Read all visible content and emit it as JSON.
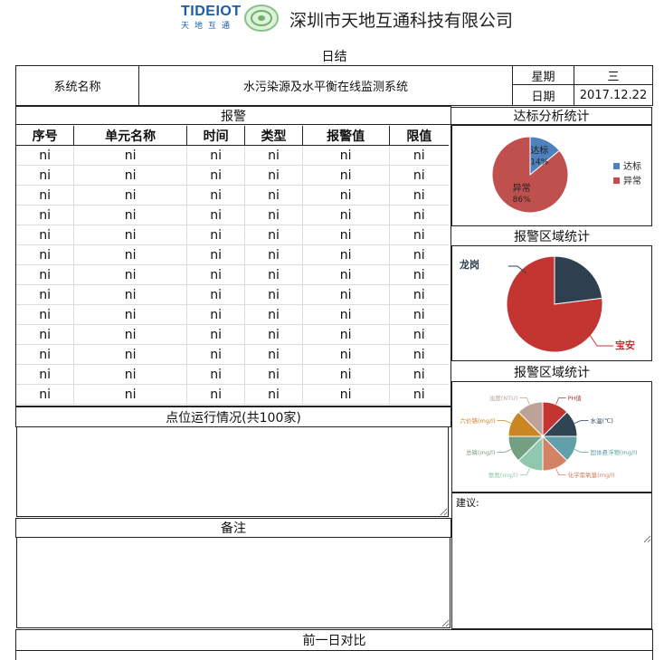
{
  "header": {
    "logo_text": "TIDEIOT",
    "logo_sub": "天地互通",
    "company": "深圳市天地互通科技有限公司"
  },
  "report_title": "日结",
  "system": {
    "name_label": "系统名称",
    "name_value": "水污染源及水平衡在线监测系统",
    "weekday_label": "星期",
    "weekday_value": "三",
    "date_label": "日期",
    "date_value": "2017.12.22"
  },
  "alarm": {
    "title": "报警",
    "columns": [
      "序号",
      "单元名称",
      "时间",
      "类型",
      "报警值",
      "限值"
    ],
    "rows": [
      [
        "ni",
        "ni",
        "ni",
        "ni",
        "ni",
        "ni"
      ],
      [
        "ni",
        "ni",
        "ni",
        "ni",
        "ni",
        "ni"
      ],
      [
        "ni",
        "ni",
        "ni",
        "ni",
        "ni",
        "ni"
      ],
      [
        "ni",
        "ni",
        "ni",
        "ni",
        "ni",
        "ni"
      ],
      [
        "ni",
        "ni",
        "ni",
        "ni",
        "ni",
        "ni"
      ],
      [
        "ni",
        "ni",
        "ni",
        "ni",
        "ni",
        "ni"
      ],
      [
        "ni",
        "ni",
        "ni",
        "ni",
        "ni",
        "ni"
      ],
      [
        "ni",
        "ni",
        "ni",
        "ni",
        "ni",
        "ni"
      ],
      [
        "ni",
        "ni",
        "ni",
        "ni",
        "ni",
        "ni"
      ],
      [
        "ni",
        "ni",
        "ni",
        "ni",
        "ni",
        "ni"
      ],
      [
        "ni",
        "ni",
        "ni",
        "ni",
        "ni",
        "ni"
      ],
      [
        "ni",
        "ni",
        "ni",
        "ni",
        "ni",
        "ni"
      ],
      [
        "ni",
        "ni",
        "ni",
        "ni",
        "ni",
        "ni"
      ]
    ]
  },
  "point_status": {
    "title": "点位运行情况(共100家)"
  },
  "remarks": {
    "title": "备注"
  },
  "suggestion": {
    "label": "建议:"
  },
  "compare": {
    "title": "前一日对比"
  },
  "charts": {
    "standard_title": "达标分析统计",
    "region_title": "报警区域统计",
    "factor_title": "报警区域统计"
  },
  "chart_data": [
    {
      "type": "pie",
      "title": "达标分析统计",
      "categories": [
        "达标",
        "异常"
      ],
      "values": [
        14,
        86
      ],
      "labels": [
        "14%",
        "86%"
      ],
      "colors": [
        "#4f81bd",
        "#c0504d"
      ],
      "legend": "right"
    },
    {
      "type": "pie",
      "title": "报警区域统计",
      "categories": [
        "龙岗",
        "宝安"
      ],
      "values": [
        23,
        77
      ],
      "colors": [
        "#2e3f4f",
        "#c23531"
      ]
    },
    {
      "type": "pie",
      "title": "报警区域统计",
      "categories": [
        "PH值",
        "水温(℃)",
        "固体悬浮物(mg/l)",
        "化学需氧量(mg/l)",
        "氨氮(mg/l)",
        "总磷(mg/l)",
        "六价铬(mg/l)",
        "浊度(NTU)"
      ],
      "values": [
        12.5,
        12.5,
        12.5,
        12.5,
        12.5,
        12.5,
        12.5,
        12.5
      ],
      "colors": [
        "#c23531",
        "#2f4554",
        "#61a0a8",
        "#d48265",
        "#91c7ae",
        "#749f83",
        "#ca8622",
        "#bda29a"
      ]
    }
  ]
}
